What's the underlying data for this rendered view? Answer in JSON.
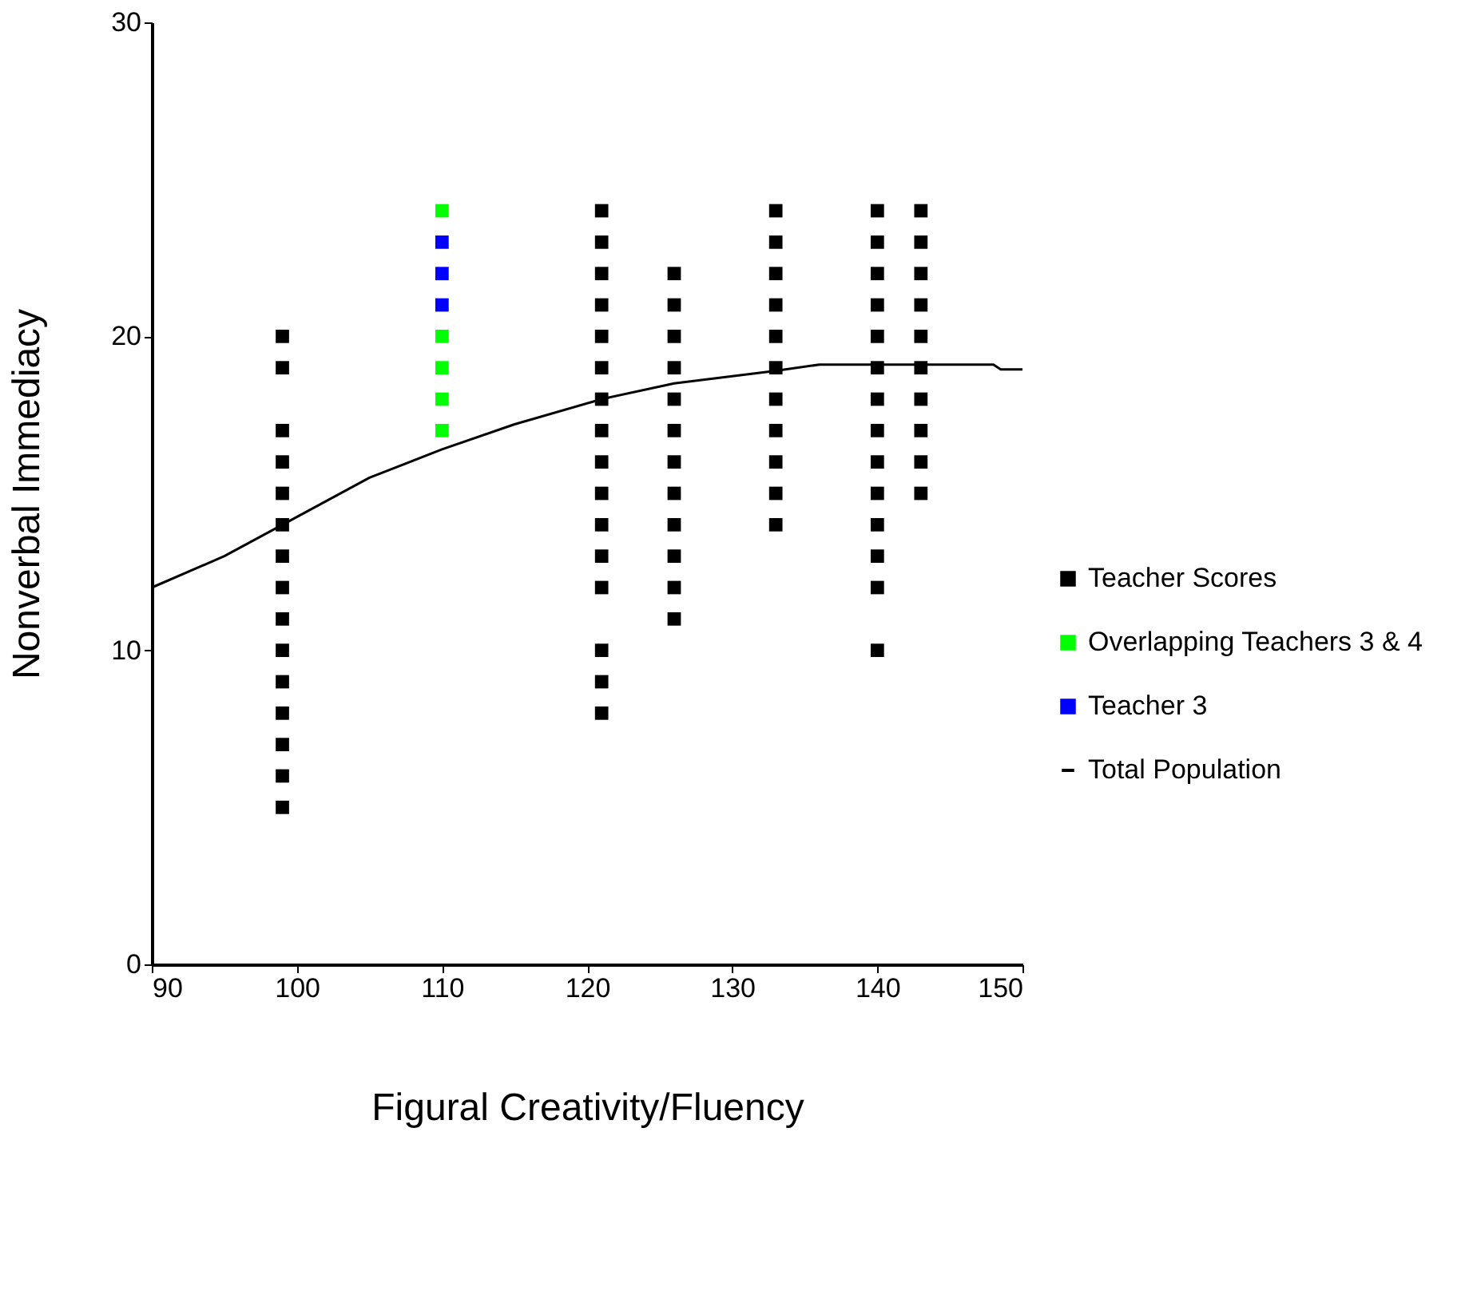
{
  "chart_data": {
    "type": "scatter",
    "xlabel": "Figural Creativity/Fluency",
    "ylabel": "Nonverbal Immediacy",
    "xlim": [
      90,
      150
    ],
    "xticks": [
      90,
      100,
      110,
      120,
      130,
      140,
      150
    ],
    "ylim": [
      0,
      30
    ],
    "yticks": [
      0,
      10,
      20,
      30
    ],
    "grid": false,
    "legend": "right",
    "marker": "square",
    "series": [
      {
        "name": "Teacher Scores",
        "color": "#000000",
        "x": [
          99,
          99,
          99,
          99,
          99,
          99,
          99,
          99,
          99,
          99,
          99,
          99,
          99,
          99,
          99,
          121,
          121,
          121,
          121,
          121,
          121,
          121,
          121,
          121,
          121,
          121,
          121,
          121,
          121,
          121,
          121,
          126,
          126,
          126,
          126,
          126,
          126,
          126,
          126,
          126,
          126,
          126,
          126,
          133,
          133,
          133,
          133,
          133,
          133,
          133,
          133,
          133,
          133,
          133,
          140,
          140,
          140,
          140,
          140,
          140,
          140,
          140,
          140,
          140,
          140,
          140,
          140,
          140,
          143,
          143,
          143,
          143,
          143,
          143,
          143,
          143,
          143,
          143
        ],
        "values": [
          20,
          19,
          17,
          16,
          15,
          14,
          13,
          12,
          11,
          10,
          9,
          8,
          7,
          6,
          5,
          24,
          23,
          22,
          21,
          20,
          19,
          18,
          17,
          16,
          15,
          14,
          13,
          12,
          10,
          9,
          8,
          22,
          21,
          20,
          19,
          18,
          17,
          16,
          15,
          14,
          13,
          12,
          11,
          24,
          23,
          22,
          21,
          20,
          19,
          18,
          17,
          16,
          15,
          14,
          24,
          23,
          22,
          21,
          20,
          19,
          18,
          17,
          16,
          15,
          14,
          13,
          12,
          10,
          24,
          23,
          22,
          21,
          20,
          19,
          18,
          17,
          16,
          15
        ]
      },
      {
        "name": "Overlapping Teachers 3 & 4",
        "color": "#00ff00",
        "x": [
          110,
          110,
          110,
          110,
          110
        ],
        "values": [
          24,
          20,
          19,
          18,
          17
        ]
      },
      {
        "name": "Teacher 3",
        "color": "#0000ff",
        "x": [
          110,
          110,
          110
        ],
        "values": [
          23,
          22,
          21
        ]
      },
      {
        "name": "Total Population",
        "color": "#000000",
        "type": "line",
        "line_style": "solid",
        "marker": "none",
        "x": [
          90,
          95,
          99,
          105,
          110,
          115,
          121,
          126,
          133,
          136,
          140,
          143,
          148,
          148.5,
          150
        ],
        "values": [
          12.0,
          13.0,
          14.0,
          15.5,
          16.4,
          17.2,
          18.0,
          18.5,
          18.9,
          19.1,
          19.1,
          19.1,
          19.1,
          18.95,
          18.95
        ]
      }
    ]
  }
}
